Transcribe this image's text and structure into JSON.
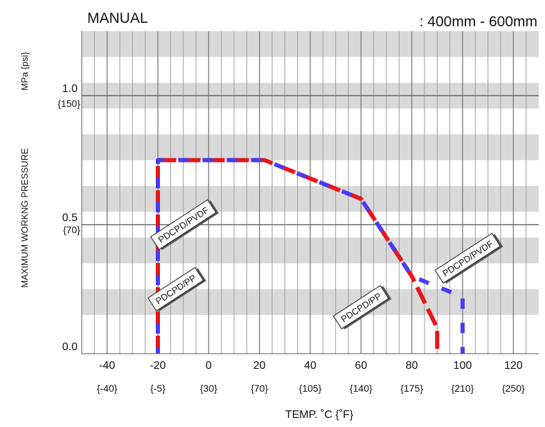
{
  "chart_data": {
    "type": "line",
    "title": "MANUAL",
    "subtitle": ": 400mm - 600mm",
    "xlabel": "TEMP. ˚C {˚F}",
    "ylabel": "MAXIMUM WORKNG PRESSURE",
    "ylabel_units": "MPa {psi}",
    "xlim": [
      -50,
      130
    ],
    "ylim": [
      0,
      1.25
    ],
    "x_ticks": [
      {
        "value": -40,
        "label": "-40",
        "sub": "{-40}"
      },
      {
        "value": -20,
        "label": "-20",
        "sub": "{-5}"
      },
      {
        "value": 0,
        "label": "0",
        "sub": "{30}"
      },
      {
        "value": 20,
        "label": "20",
        "sub": "{70}"
      },
      {
        "value": 40,
        "label": "40",
        "sub": "{105}"
      },
      {
        "value": 60,
        "label": "60",
        "sub": "{140}"
      },
      {
        "value": 80,
        "label": "80",
        "sub": "{175}"
      },
      {
        "value": 100,
        "label": "100",
        "sub": "{210}"
      },
      {
        "value": 120,
        "label": "120",
        "sub": "{250}"
      }
    ],
    "y_ticks": [
      {
        "value": 0.0,
        "label": "0.0"
      },
      {
        "value": 0.5,
        "label": "0.5"
      },
      {
        "value": 1.0,
        "label": "1.0"
      }
    ],
    "y_psi_ticks": [
      {
        "value": 0.48,
        "label": "{70}"
      },
      {
        "value": 0.97,
        "label": "{150}"
      }
    ],
    "grid": true,
    "series": [
      {
        "name": "PDCPD/PVDF",
        "color": "#4a3cf0",
        "x": [
          -20,
          -20,
          22,
          60,
          80,
          100,
          100
        ],
        "y": [
          0,
          0.75,
          0.75,
          0.6,
          0.3,
          0.22,
          0
        ]
      },
      {
        "name": "PDCPD/PP",
        "color": "#e8151b",
        "x": [
          -20,
          -20,
          22,
          60,
          80,
          90,
          90
        ],
        "y": [
          0,
          0.75,
          0.75,
          0.6,
          0.3,
          0.1,
          0
        ]
      }
    ],
    "annotations": [
      {
        "text": "PDCPD/PVDF",
        "x": -10,
        "y": 0.5,
        "series": "PDCPD/PVDF"
      },
      {
        "text": "PDCPD/PP",
        "x": -13,
        "y": 0.25,
        "series": "PDCPD/PP"
      },
      {
        "text": "PDCPD/PP",
        "x": 60,
        "y": 0.18,
        "series": "PDCPD/PP"
      },
      {
        "text": "PDCPD/PVDF",
        "x": 102,
        "y": 0.37,
        "series": "PDCPD/PVDF"
      }
    ]
  }
}
